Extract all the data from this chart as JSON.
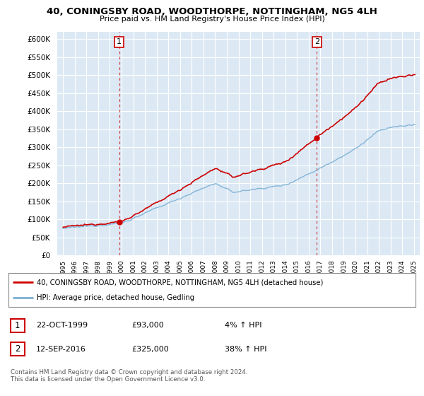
{
  "title": "40, CONINGSBY ROAD, WOODTHORPE, NOTTINGHAM, NG5 4LH",
  "subtitle": "Price paid vs. HM Land Registry's House Price Index (HPI)",
  "legend_label_red": "40, CONINGSBY ROAD, WOODTHORPE, NOTTINGHAM, NG5 4LH (detached house)",
  "legend_label_blue": "HPI: Average price, detached house, Gedling",
  "sale1_date": "22-OCT-1999",
  "sale1_price": "£93,000",
  "sale1_hpi": "4% ↑ HPI",
  "sale2_date": "12-SEP-2016",
  "sale2_price": "£325,000",
  "sale2_hpi": "38% ↑ HPI",
  "footnote": "Contains HM Land Registry data © Crown copyright and database right 2024.\nThis data is licensed under the Open Government Licence v3.0.",
  "ylim": [
    0,
    620000
  ],
  "yticks": [
    0,
    50000,
    100000,
    150000,
    200000,
    250000,
    300000,
    350000,
    400000,
    450000,
    500000,
    550000,
    600000
  ],
  "bg_color": "#dce9f5",
  "grid_color": "#ffffff",
  "red_color": "#cc0000",
  "blue_color": "#7bafd4",
  "sale1_x": 1999.8,
  "sale1_y": 93000,
  "sale2_x": 2016.7,
  "sale2_y": 325000,
  "vline1_x": 1999.8,
  "vline2_x": 2016.7,
  "xlim_left": 1994.5,
  "xlim_right": 2025.5
}
